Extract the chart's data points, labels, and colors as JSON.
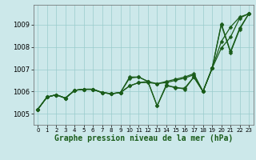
{
  "xlabel": "Graphe pression niveau de la mer (hPa)",
  "bg_color": "#cce8ea",
  "grid_color": "#99cccc",
  "line_color": "#1a5c1a",
  "xlim": [
    -0.5,
    23.5
  ],
  "ylim": [
    1004.5,
    1009.9
  ],
  "yticks": [
    1005,
    1006,
    1007,
    1008,
    1009
  ],
  "xticks": [
    0,
    1,
    2,
    3,
    4,
    5,
    6,
    7,
    8,
    9,
    10,
    11,
    12,
    13,
    14,
    15,
    16,
    17,
    18,
    19,
    20,
    21,
    22,
    23
  ],
  "series": [
    {
      "x": [
        0,
        1,
        2,
        3,
        4,
        5,
        6,
        7,
        8,
        9,
        10,
        11,
        12,
        13,
        14,
        15,
        16,
        17,
        18,
        19,
        20,
        21,
        22,
        23
      ],
      "y": [
        1005.2,
        1005.75,
        1005.85,
        1005.7,
        1006.05,
        1006.1,
        1006.1,
        1005.95,
        1005.9,
        1005.95,
        1006.6,
        1006.65,
        1006.45,
        1005.35,
        1006.3,
        1006.15,
        1006.15,
        1006.65,
        1006.0,
        1007.05,
        1009.0,
        1007.75,
        1008.8,
        1009.5
      ]
    },
    {
      "x": [
        0,
        1,
        2,
        3,
        4,
        5,
        6,
        7,
        8,
        9,
        10,
        11,
        12,
        13,
        14,
        15,
        16,
        17,
        18,
        19,
        20,
        21,
        22,
        23
      ],
      "y": [
        1005.2,
        1005.75,
        1005.85,
        1005.7,
        1006.05,
        1006.1,
        1006.1,
        1005.95,
        1005.9,
        1005.95,
        1006.25,
        1006.4,
        1006.4,
        1006.35,
        1006.4,
        1006.5,
        1006.6,
        1006.75,
        1006.0,
        1007.05,
        1007.95,
        1008.45,
        1009.3,
        1009.5
      ]
    },
    {
      "x": [
        0,
        1,
        2,
        3,
        4,
        5,
        6,
        7,
        8,
        9,
        10,
        11,
        12,
        13,
        14,
        15,
        16,
        17,
        18,
        19,
        20,
        21,
        22,
        23
      ],
      "y": [
        1005.2,
        1005.75,
        1005.85,
        1005.7,
        1006.05,
        1006.1,
        1006.1,
        1005.95,
        1005.9,
        1005.95,
        1006.25,
        1006.4,
        1006.45,
        1006.35,
        1006.45,
        1006.55,
        1006.65,
        1006.8,
        1006.0,
        1007.05,
        1008.25,
        1008.9,
        1009.35,
        1009.5
      ]
    },
    {
      "x": [
        0,
        1,
        2,
        3,
        4,
        5,
        6,
        7,
        8,
        9,
        10,
        11,
        12,
        13,
        14,
        15,
        16,
        17,
        18,
        19,
        20,
        21,
        22,
        23
      ],
      "y": [
        1005.2,
        1005.75,
        1005.85,
        1005.7,
        1006.05,
        1006.1,
        1006.1,
        1005.95,
        1005.9,
        1005.95,
        1006.65,
        1006.65,
        1006.45,
        1005.35,
        1006.25,
        1006.2,
        1006.1,
        1006.65,
        1006.0,
        1007.05,
        1009.05,
        1007.8,
        1008.85,
        1009.5
      ]
    }
  ],
  "marker_size": 2.5,
  "linewidth": 0.9,
  "xlabel_fontsize": 7,
  "ytick_fontsize": 6,
  "xtick_fontsize": 5
}
